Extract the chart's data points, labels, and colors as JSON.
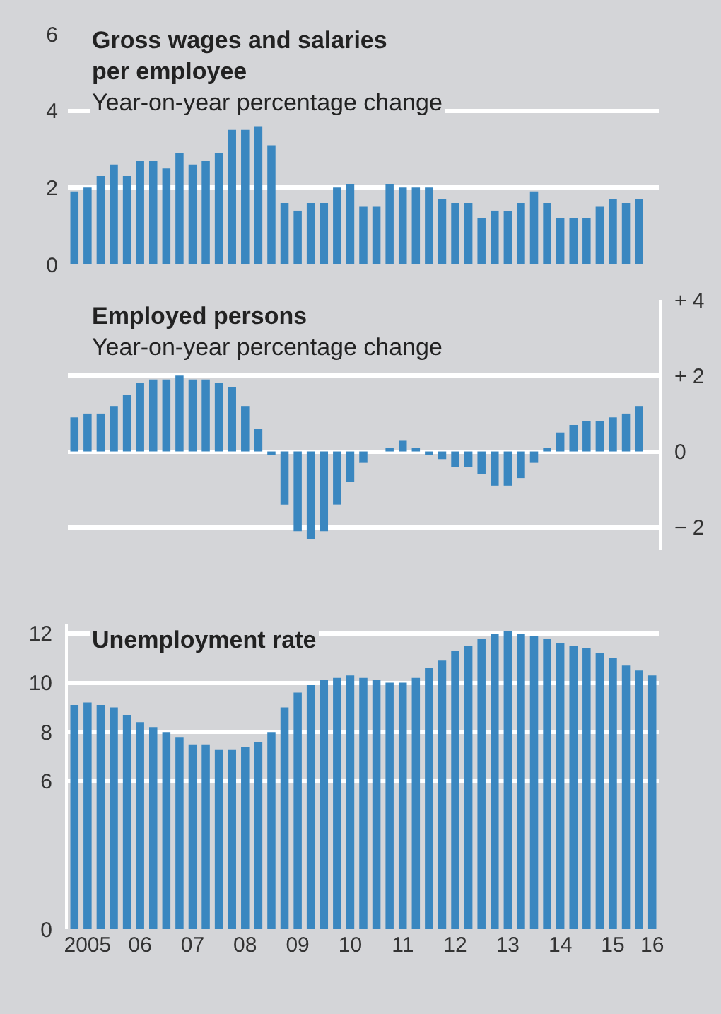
{
  "chart_data": [
    {
      "type": "bar",
      "title": "Gross wages and salaries per employee",
      "subtitle": "Year-on-year percentage change",
      "categories": [
        null,
        null,
        null,
        null,
        null,
        null,
        null,
        null,
        null,
        null,
        null,
        null,
        null,
        null,
        null,
        null,
        null,
        null,
        null,
        null,
        null,
        null,
        null,
        null,
        null,
        null,
        null,
        null,
        null,
        null,
        null,
        null,
        null,
        null,
        null,
        null,
        null,
        null,
        null,
        null,
        null,
        null,
        null,
        null,
        null
      ],
      "series": [
        {
          "color": "#3a87c0",
          "values": [
            1.9,
            2.0,
            2.3,
            2.6,
            2.3,
            2.7,
            2.7,
            2.5,
            2.9,
            2.6,
            2.7,
            2.9,
            3.5,
            3.5,
            3.6,
            3.1,
            1.6,
            1.4,
            1.6,
            1.6,
            2.0,
            2.1,
            1.5,
            1.5,
            2.1,
            2.0,
            2.0,
            2.0,
            1.7,
            1.6,
            1.6,
            1.2,
            1.4,
            1.4,
            1.6,
            1.9,
            1.6,
            1.2,
            1.2,
            1.2,
            1.5,
            1.7,
            1.6,
            1.7,
            null
          ]
        }
      ],
      "ylim": [
        0,
        6
      ],
      "yticks": [
        0,
        2,
        4,
        6
      ],
      "grid": "y",
      "tick_labels": "y"
    },
    {
      "type": "bar",
      "title": "Employed persons",
      "subtitle": "Year-on-year percentage change",
      "categories": [
        null,
        null,
        null,
        null,
        null,
        null,
        null,
        null,
        null,
        null,
        null,
        null,
        null,
        null,
        null,
        null,
        null,
        null,
        null,
        null,
        null,
        null,
        null,
        null,
        null,
        null,
        null,
        null,
        null,
        null,
        null,
        null,
        null,
        null,
        null,
        null,
        null,
        null,
        null,
        null,
        null,
        null,
        null,
        null,
        null
      ],
      "series": [
        {
          "color": "#3a87c0",
          "values": [
            0.9,
            1.0,
            1.0,
            1.2,
            1.5,
            1.8,
            1.9,
            1.9,
            2.0,
            1.9,
            1.9,
            1.8,
            1.7,
            1.2,
            0.6,
            -0.1,
            -1.4,
            -2.1,
            -2.3,
            -2.1,
            -1.4,
            -0.8,
            -0.3,
            0.0,
            0.1,
            0.3,
            0.1,
            -0.1,
            -0.2,
            -0.4,
            -0.4,
            -0.6,
            -0.9,
            -0.9,
            -0.7,
            -0.3,
            0.1,
            0.5,
            0.7,
            0.8,
            0.8,
            0.9,
            1.0,
            1.2,
            null
          ]
        }
      ],
      "ylim": [
        -2.6,
        4
      ],
      "yticks": [
        {
          "value": 4,
          "label": "+ 4"
        },
        {
          "value": 2,
          "label": "+ 2"
        },
        0,
        {
          "value": -2,
          "label": "− 2"
        }
      ],
      "grid": "y",
      "tick_labels": "y"
    },
    {
      "type": "bar",
      "title": "Unemployment rate",
      "categories": [
        null,
        "2005",
        null,
        null,
        null,
        "06",
        null,
        null,
        null,
        "07",
        null,
        null,
        null,
        "08",
        null,
        null,
        null,
        "09",
        null,
        null,
        null,
        "10",
        null,
        null,
        null,
        "11",
        null,
        null,
        null,
        "12",
        null,
        null,
        null,
        "13",
        null,
        null,
        null,
        "14",
        null,
        null,
        null,
        "15",
        null,
        null,
        "16"
      ],
      "series": [
        {
          "color": "#3a87c0",
          "values": [
            9.1,
            9.2,
            9.1,
            9.0,
            8.7,
            8.4,
            8.2,
            8.0,
            7.8,
            7.5,
            7.5,
            7.3,
            7.3,
            7.4,
            7.6,
            8.0,
            9.0,
            9.6,
            9.9,
            10.1,
            10.2,
            10.3,
            10.2,
            10.1,
            10.0,
            10.0,
            10.2,
            10.6,
            10.9,
            11.3,
            11.5,
            11.8,
            12.0,
            12.1,
            12.0,
            11.9,
            11.8,
            11.6,
            11.5,
            11.4,
            11.2,
            11.0,
            10.7,
            10.5,
            10.3
          ]
        }
      ],
      "ylim": [
        0,
        12.4
      ],
      "yticks": [
        0,
        6,
        8,
        10,
        12
      ],
      "grid": "y"
    }
  ]
}
